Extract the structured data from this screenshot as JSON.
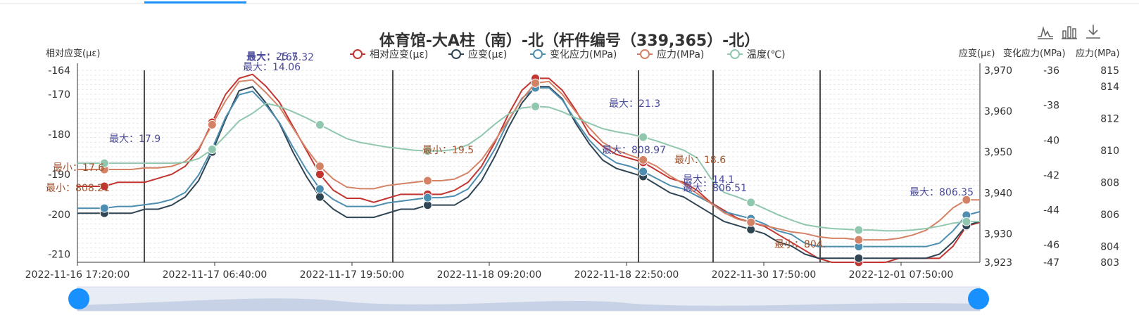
{
  "chart_data": {
    "type": "line",
    "title": "体育馆-大A柱（南）-北（杆件编号（339,365）-北）",
    "legend": {
      "placement": "top-center",
      "items": [
        "相对应变(με)",
        "应变(με)",
        "变化应力(MPa)",
        "应力(MPa)",
        "温度(℃)"
      ]
    },
    "axes": {
      "left": {
        "name": "相对应变(με)",
        "ticks": [
          "-164",
          "-170",
          "-180",
          "-190",
          "-200",
          "-210"
        ],
        "range": [
          -212,
          -164
        ]
      },
      "right1": {
        "name": "应变(με)",
        "ticks": [
          "3,970",
          "3,960",
          "3,950",
          "3,940",
          "3,930",
          "3,923"
        ],
        "range": [
          3923,
          3970
        ]
      },
      "right2": {
        "name": "变化应力(MPa)",
        "ticks": [
          "-36",
          "-38",
          "-40",
          "-42",
          "-44",
          "-46",
          "-47"
        ],
        "range": [
          -47,
          -36
        ]
      },
      "right3": {
        "name": "应力(MPa)",
        "ticks": [
          "815",
          "814",
          "812",
          "810",
          "808",
          "806",
          "804",
          "803"
        ],
        "range": [
          803,
          815
        ]
      }
    },
    "x_ticks": [
      "2022-11-16 17:20:00",
      "2022-11-17 06:40:00",
      "2022-11-17 19:50:00",
      "2022-11-18 09:20:00",
      "2022-11-18 22:50:00",
      "2022-11-30 17:50:00",
      "2022-12-01 07:50:00"
    ],
    "series": [
      {
        "name": "相对应变(με)",
        "color": "#c23531",
        "values": [
          -193,
          -193,
          -193,
          -192,
          -192,
          -192,
          -191,
          -190,
          -188,
          -184,
          -177,
          -170,
          -166,
          -165,
          -168,
          -172,
          -178,
          -184,
          -190,
          -194,
          -196,
          -196,
          -197,
          -196,
          -195,
          -195,
          -195,
          -195,
          -194,
          -192,
          -188,
          -182,
          -175,
          -169,
          -166,
          -166,
          -169,
          -174,
          -180,
          -183,
          -185,
          -186,
          -187,
          -189,
          -191,
          -192,
          -194,
          -197,
          -199,
          -201,
          -202,
          -203,
          -205,
          -207,
          -209,
          -211,
          -212,
          -212,
          -212,
          -212,
          -212,
          -211,
          -211,
          -211,
          -211,
          -208,
          -203,
          -202
        ]
      },
      {
        "name": "应变(με)",
        "color": "#2f4554",
        "values": [
          3935,
          3935,
          3935,
          3935,
          3935,
          3936,
          3936,
          3937,
          3939,
          3943,
          3950,
          3958,
          3965,
          3966,
          3962,
          3957,
          3950,
          3944,
          3939,
          3936,
          3934,
          3934,
          3934,
          3935,
          3936,
          3936,
          3937,
          3937,
          3937,
          3939,
          3943,
          3949,
          3956,
          3962,
          3966,
          3966,
          3963,
          3957,
          3952,
          3948,
          3946,
          3945,
          3944,
          3942,
          3940,
          3939,
          3937,
          3935,
          3933,
          3932,
          3931,
          3930,
          3928,
          3927,
          3925,
          3924,
          3924,
          3924,
          3924,
          3924,
          3924,
          3924,
          3924,
          3924,
          3925,
          3928,
          3932,
          3933
        ]
      },
      {
        "name": "变化应力(MPa)",
        "color": "#4d8eb0",
        "values": [
          -43.9,
          -43.9,
          -43.9,
          -43.8,
          -43.8,
          -43.7,
          -43.6,
          -43.4,
          -43.0,
          -42.0,
          -40.5,
          -38.7,
          -37.4,
          -37.2,
          -38.0,
          -39.0,
          -40.4,
          -41.7,
          -42.8,
          -43.4,
          -43.8,
          -43.8,
          -43.8,
          -43.6,
          -43.5,
          -43.4,
          -43.3,
          -43.3,
          -43.2,
          -42.8,
          -41.8,
          -40.5,
          -38.9,
          -37.6,
          -37.0,
          -37.0,
          -37.7,
          -38.9,
          -40.0,
          -40.8,
          -41.3,
          -41.5,
          -41.8,
          -42.2,
          -42.6,
          -42.8,
          -43.2,
          -43.6,
          -44.1,
          -44.3,
          -44.5,
          -44.8,
          -45.2,
          -45.4,
          -45.9,
          -46.1,
          -46.1,
          -46.1,
          -46.1,
          -46.1,
          -46.1,
          -46.1,
          -46.1,
          -46.1,
          -45.9,
          -45.2,
          -44.3,
          -44.1
        ]
      },
      {
        "name": "应力(MPa)",
        "color": "#d48265",
        "values": [
          808.8,
          808.8,
          808.8,
          808.8,
          808.8,
          808.9,
          808.9,
          809.0,
          809.3,
          810.1,
          811.6,
          813.1,
          814.3,
          814.4,
          813.6,
          812.7,
          811.4,
          810.1,
          809.0,
          808.2,
          807.7,
          807.6,
          807.6,
          807.8,
          807.9,
          808.0,
          808.1,
          808.1,
          808.2,
          808.6,
          809.4,
          810.6,
          811.9,
          813.2,
          814.2,
          814.3,
          813.5,
          812.4,
          811.4,
          810.5,
          810.0,
          809.7,
          809.4,
          809.0,
          808.4,
          807.9,
          807.3,
          806.7,
          806.1,
          805.7,
          805.5,
          805.3,
          805.1,
          804.9,
          804.8,
          804.6,
          804.5,
          804.5,
          804.4,
          804.4,
          804.4,
          804.5,
          804.7,
          805.0,
          805.6,
          806.4,
          806.9,
          806.9
        ]
      },
      {
        "name": "温度(℃)",
        "color": "#91c7ae",
        "values": [
          17.9,
          17.9,
          17.9,
          17.9,
          17.9,
          17.9,
          17.9,
          17.9,
          18.0,
          18.5,
          19.7,
          21.5,
          23.4,
          24.4,
          25.7,
          25.3,
          24.6,
          23.8,
          22.9,
          22.0,
          21.1,
          20.6,
          20.3,
          20.0,
          19.8,
          19.6,
          19.5,
          19.5,
          19.7,
          20.3,
          21.5,
          23.0,
          24.3,
          25.1,
          25.3,
          25.2,
          24.6,
          23.8,
          23.1,
          22.4,
          22.0,
          21.7,
          21.3,
          20.8,
          20.2,
          19.6,
          18.6,
          16.0,
          14.1,
          13.5,
          12.8,
          12.0,
          11.2,
          10.5,
          9.9,
          9.6,
          9.4,
          9.3,
          9.2,
          9.2,
          9.1,
          9.1,
          9.2,
          9.4,
          9.7,
          10.1,
          10.3,
          10.3
        ]
      }
    ],
    "marklines": [
      "2022-11-16 22:00",
      "2022-11-17 19:00",
      "2022-11-18 21:00",
      "2022-11-30 12:00",
      "2022-12-01 07:00"
    ],
    "annotations": [
      "最大：17.9",
      "最大：25.7",
      "最大：21.3",
      "最小：19.5",
      "最小：18.6",
      "最大：14.1",
      "最大：806.35",
      "最大：806.51",
      "最大：808.97",
      "最大：14.06",
      "最大：-165.32",
      "最小：804.",
      "最小：17.6",
      "最小：808.21"
    ],
    "grid": true
  },
  "toolbox": {
    "line_icon": "line-chart-icon",
    "bar_icon": "bar-chart-icon",
    "download_icon": "download-icon"
  }
}
